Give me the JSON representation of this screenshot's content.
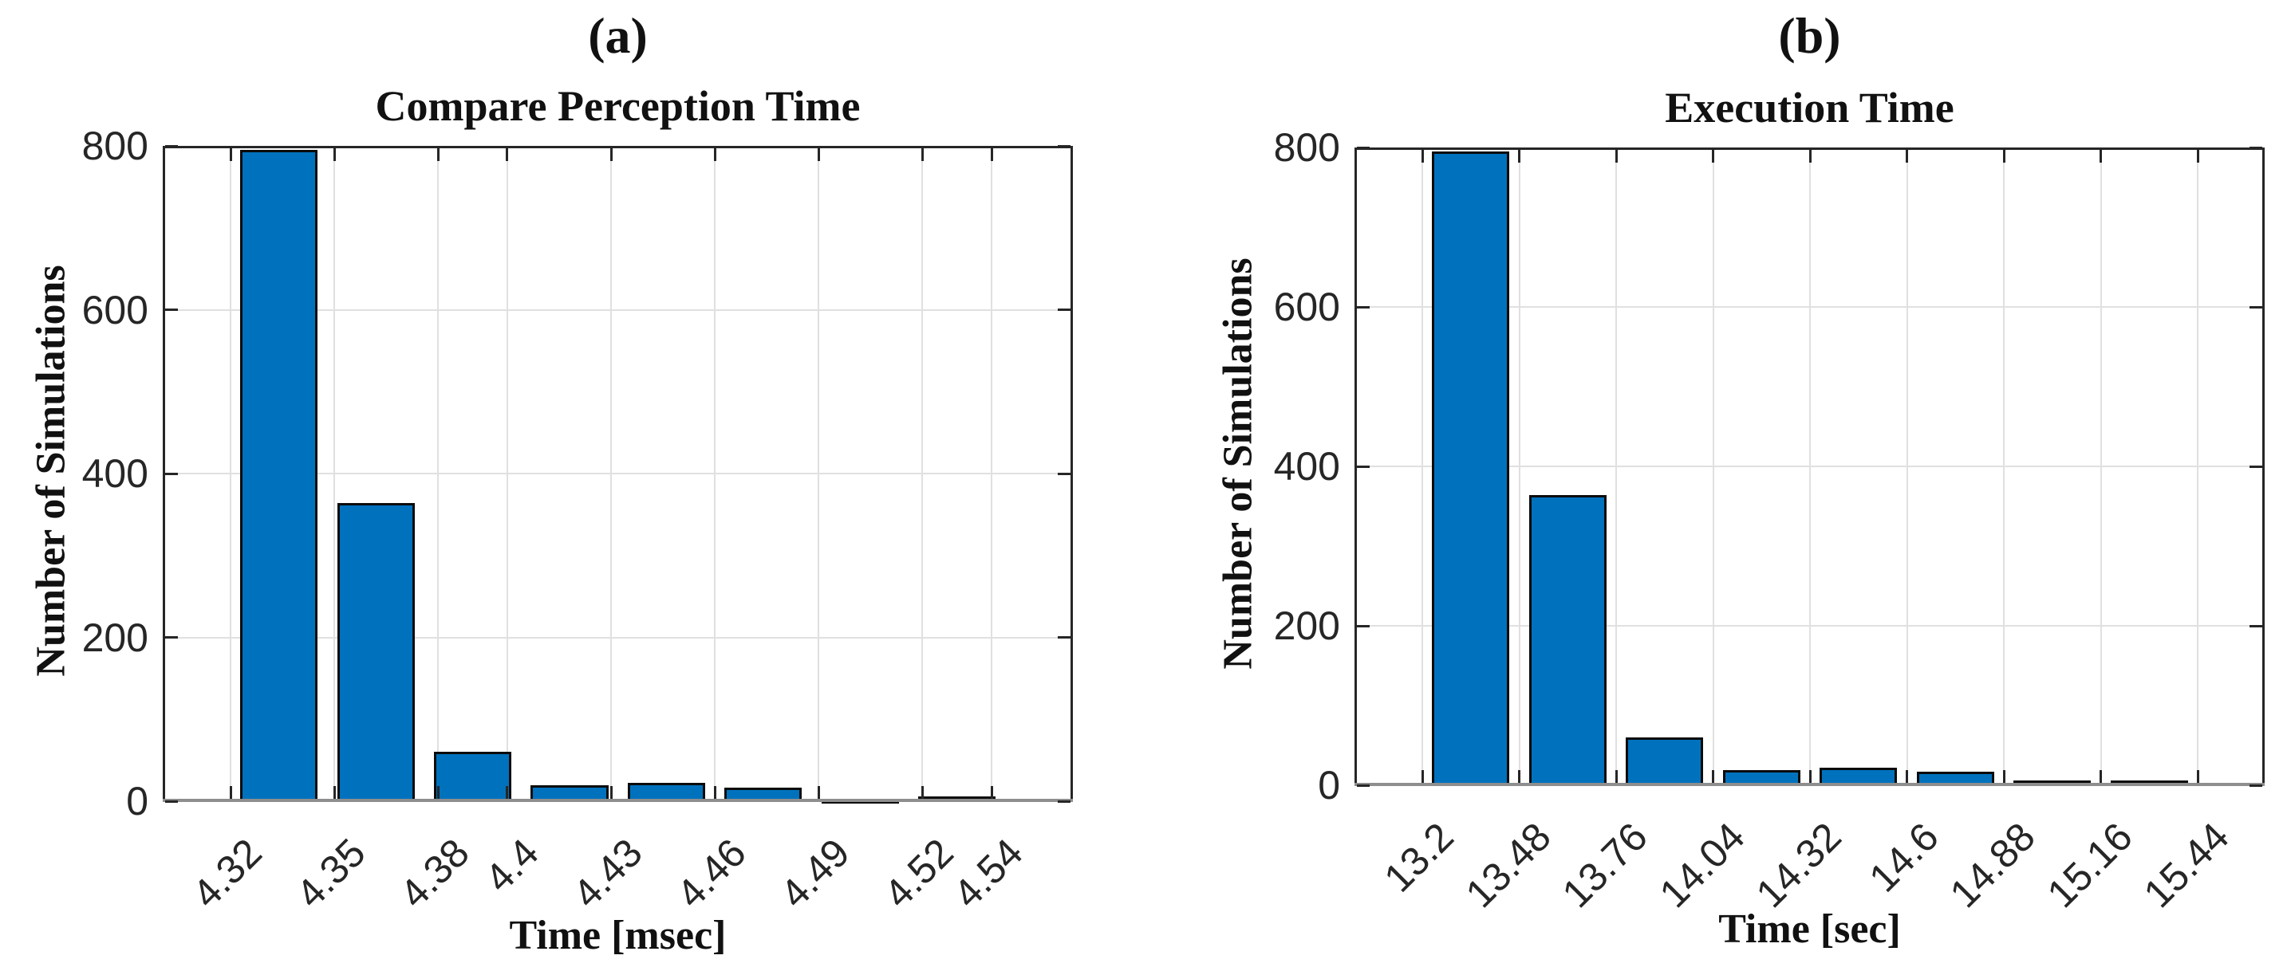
{
  "figure": {
    "background": "#ffffff",
    "grid_color": "#e0e0e0",
    "axis_box_color": "#262626",
    "baseline_color": "#8e8e8e",
    "text_color": "#111111"
  },
  "chart_data": [
    {
      "type": "bar",
      "panel_label": "(a)",
      "title": "Compare Perception Time",
      "xlabel": "Time [msec]",
      "ylabel": "Number of Simulations",
      "bin_start": 4.32,
      "bin_width": 0.028,
      "counts": [
        795,
        364,
        60,
        19,
        22,
        17,
        3,
        6
      ],
      "x_tick_labels": [
        "4.32",
        "4.35",
        "4.38",
        "4.4",
        "4.43",
        "4.46",
        "4.49",
        "4.52",
        "4.54"
      ],
      "y_tick_labels": [
        "0",
        "200",
        "400",
        "600",
        "800"
      ],
      "ylim": [
        0,
        800
      ],
      "grid": true,
      "legend": "none",
      "bar_color": "#0072BD",
      "bar_edge_color": "#0b0b0b"
    },
    {
      "type": "bar",
      "panel_label": "(b)",
      "title": "Execution Time",
      "xlabel": "Time [sec]",
      "ylabel": "Number of Simulations",
      "bin_start": 13.2,
      "bin_width": 0.28,
      "counts": [
        795,
        364,
        60,
        19,
        22,
        17,
        6,
        6
      ],
      "x_tick_labels": [
        "13.2",
        "13.48",
        "13.76",
        "14.04",
        "14.32",
        "14.6",
        "14.88",
        "15.16",
        "15.44"
      ],
      "y_tick_labels": [
        "0",
        "200",
        "400",
        "600",
        "800"
      ],
      "ylim": [
        0,
        800
      ],
      "grid": true,
      "legend": "none",
      "bar_color": "#0072BD",
      "bar_edge_color": "#0b0b0b"
    }
  ]
}
